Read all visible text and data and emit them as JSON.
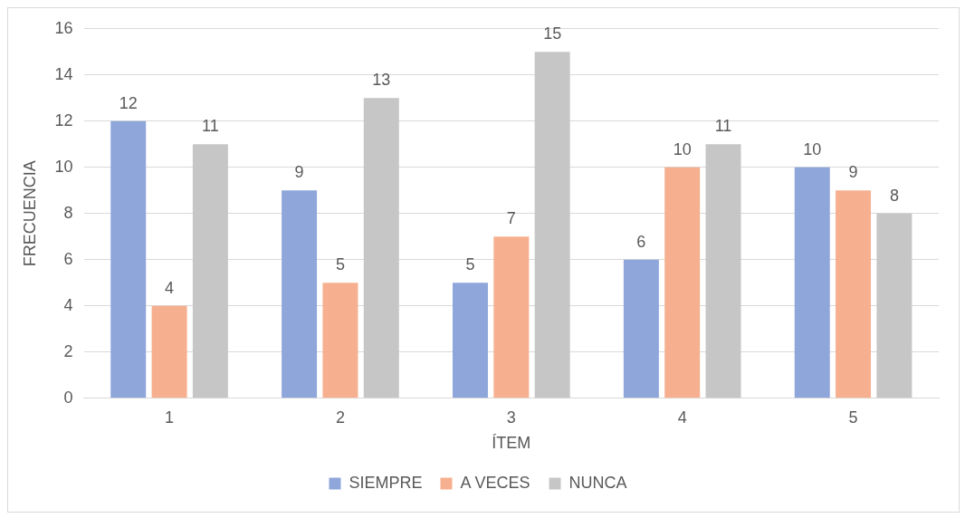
{
  "chart_data": {
    "type": "bar",
    "xlabel": "ÍTEM",
    "ylabel": "FRECUENCIA",
    "categories": [
      "1",
      "2",
      "3",
      "4",
      "5"
    ],
    "series": [
      {
        "name": "SIEMPRE",
        "color": "#8fa6db",
        "values": [
          12,
          9,
          5,
          6,
          10
        ]
      },
      {
        "name": "A VECES",
        "color": "#f6b08f",
        "values": [
          4,
          5,
          7,
          10,
          9
        ]
      },
      {
        "name": "NUNCA",
        "color": "#c6c6c6",
        "values": [
          11,
          13,
          15,
          11,
          8
        ]
      }
    ],
    "ylim": [
      0,
      16
    ],
    "yticks": [
      0,
      2,
      4,
      6,
      8,
      10,
      12,
      14,
      16
    ],
    "grid": "y",
    "legend": "bottom",
    "data_labels": true
  }
}
